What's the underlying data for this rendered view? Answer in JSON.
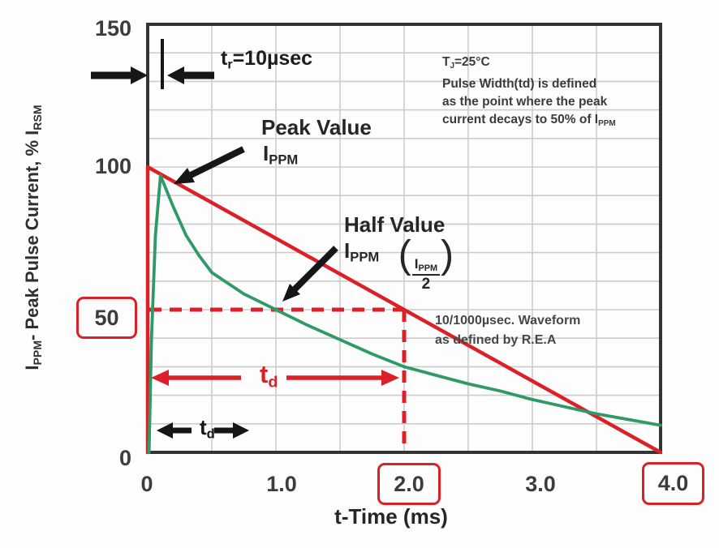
{
  "colors": {
    "accent_red": "#db2127",
    "curve_green": "#2f9a67",
    "grid": "#cccccc",
    "axis": "#333333",
    "text": "#3c3c3c"
  },
  "axes": {
    "x_title": "t-Time (ms)",
    "y_title_parts": {
      "sym1": "I",
      "sub1": "PPM",
      "mid": "- Peak Pulse Current, % ",
      "sym2": "I",
      "sub2": "RSM"
    },
    "y_ticks": [
      {
        "label": "150",
        "boxed": false
      },
      {
        "label": "100",
        "boxed": false
      },
      {
        "label": "50",
        "boxed": true
      },
      {
        "label": "0",
        "boxed": false
      }
    ],
    "x_ticks": [
      {
        "label": "0",
        "boxed": false
      },
      {
        "label": "1.0",
        "boxed": false
      },
      {
        "label": "2.0",
        "boxed": true
      },
      {
        "label": "3.0",
        "boxed": false
      },
      {
        "label": "4.0",
        "boxed": true
      }
    ]
  },
  "annotations": {
    "rise_time": {
      "base": "t",
      "sub": "r",
      "rest": "=10µsec"
    },
    "peak": {
      "line1": "Peak Value",
      "sym": "I",
      "sub": "PPM"
    },
    "half": {
      "line1": "Half Value",
      "sym": "I",
      "sub": "PPM",
      "frac_num_sym": "I",
      "frac_num_sub": "PPM",
      "frac_den": "2"
    },
    "conditions": {
      "line1_base": "T",
      "line1_sub": "J",
      "line1_rest": "=25°C",
      "line2": "Pulse Width(td) is defined",
      "line3": "as the point where the peak",
      "line4_pre": "current decays to 50% of ",
      "line4_sym": "I",
      "line4_sub": "PPM"
    },
    "waveform_note": {
      "line1": "10/1000µsec. Waveform",
      "line2": "as defined by R.E.A"
    },
    "td_red": {
      "base": "t",
      "sub": "d"
    },
    "td_black": {
      "base": "t",
      "sub": "d"
    }
  },
  "chart_data": {
    "type": "line",
    "title": "",
    "xlabel": "t-Time (ms)",
    "ylabel": "IPPM - Peak Pulse Current, % IRSM",
    "xlim": [
      0,
      4
    ],
    "ylim": [
      0,
      150
    ],
    "x_gridline_step": 0.5,
    "y_gridline_step": 10,
    "x_tick_values": [
      0,
      1.0,
      2.0,
      3.0,
      4.0
    ],
    "y_tick_values": [
      0,
      50,
      100,
      150
    ],
    "grid": true,
    "legend": "none",
    "series": [
      {
        "name": "red-ideal-waveform",
        "desc": "10/1000usec waveform as defined by R.E.A (linear decay, 100% at 0 ms to 0% at 4 ms)",
        "color": "#db2127",
        "points": [
          [
            0,
            0
          ],
          [
            0,
            100
          ],
          [
            4,
            0
          ]
        ]
      },
      {
        "name": "green-actual-waveform",
        "desc": "Actual surge pulse: fast rise (tr=10usec) to ~97% peak then exponential decay",
        "color": "#2f9a67",
        "points": [
          [
            0.01,
            0
          ],
          [
            0.03,
            40
          ],
          [
            0.06,
            76
          ],
          [
            0.1,
            97
          ],
          [
            0.2,
            86
          ],
          [
            0.3,
            76
          ],
          [
            0.4,
            69
          ],
          [
            0.5,
            63
          ],
          [
            0.75,
            55.5
          ],
          [
            1.0,
            50
          ],
          [
            1.25,
            44.5
          ],
          [
            1.5,
            39.5
          ],
          [
            1.75,
            34.5
          ],
          [
            2.0,
            30
          ],
          [
            2.25,
            27
          ],
          [
            2.5,
            24
          ],
          [
            2.75,
            21.5
          ],
          [
            3.0,
            18.5
          ],
          [
            3.25,
            16
          ],
          [
            3.5,
            13.5
          ],
          [
            3.75,
            11.5
          ],
          [
            4.0,
            9.5
          ]
        ]
      }
    ],
    "guides": {
      "half_value_percent": 50,
      "pulse_width_td_ms": 2.0
    }
  }
}
